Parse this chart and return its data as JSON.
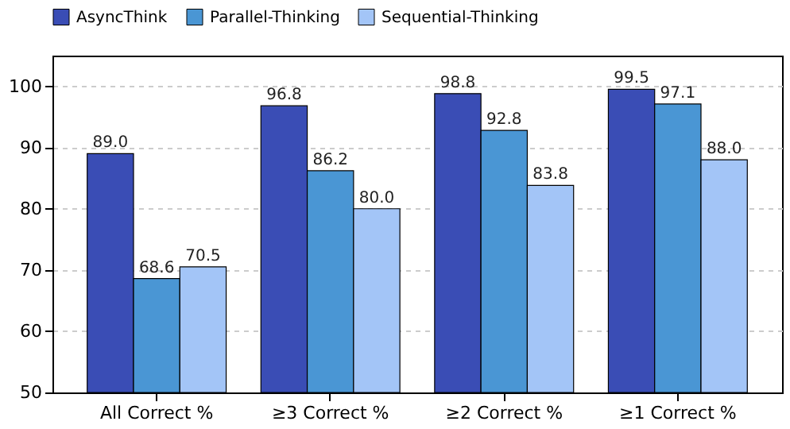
{
  "chart_data": {
    "type": "bar",
    "categories": [
      "All Correct %",
      "≥3 Correct %",
      "≥2 Correct %",
      "≥1 Correct %"
    ],
    "series": [
      {
        "name": "AsyncThink",
        "color": "#3a4db5",
        "values": [
          89.0,
          96.8,
          98.8,
          99.5
        ],
        "value_labels": [
          "89.0",
          "96.8",
          "98.8",
          "99.5"
        ]
      },
      {
        "name": "Parallel-Thinking",
        "color": "#4a96d4",
        "values": [
          68.6,
          86.2,
          92.8,
          97.1
        ],
        "value_labels": [
          "68.6",
          "86.2",
          "92.8",
          "97.1"
        ]
      },
      {
        "name": "Sequential-Thinking",
        "color": "#a3c5f7",
        "values": [
          70.5,
          80.0,
          83.8,
          88.0
        ],
        "value_labels": [
          "70.5",
          "80.0",
          "83.8",
          "88.0"
        ]
      }
    ],
    "ylim": [
      50,
      105
    ],
    "yticks": [
      50,
      60,
      70,
      80,
      90,
      100
    ],
    "grid": "y",
    "legend": "top"
  }
}
